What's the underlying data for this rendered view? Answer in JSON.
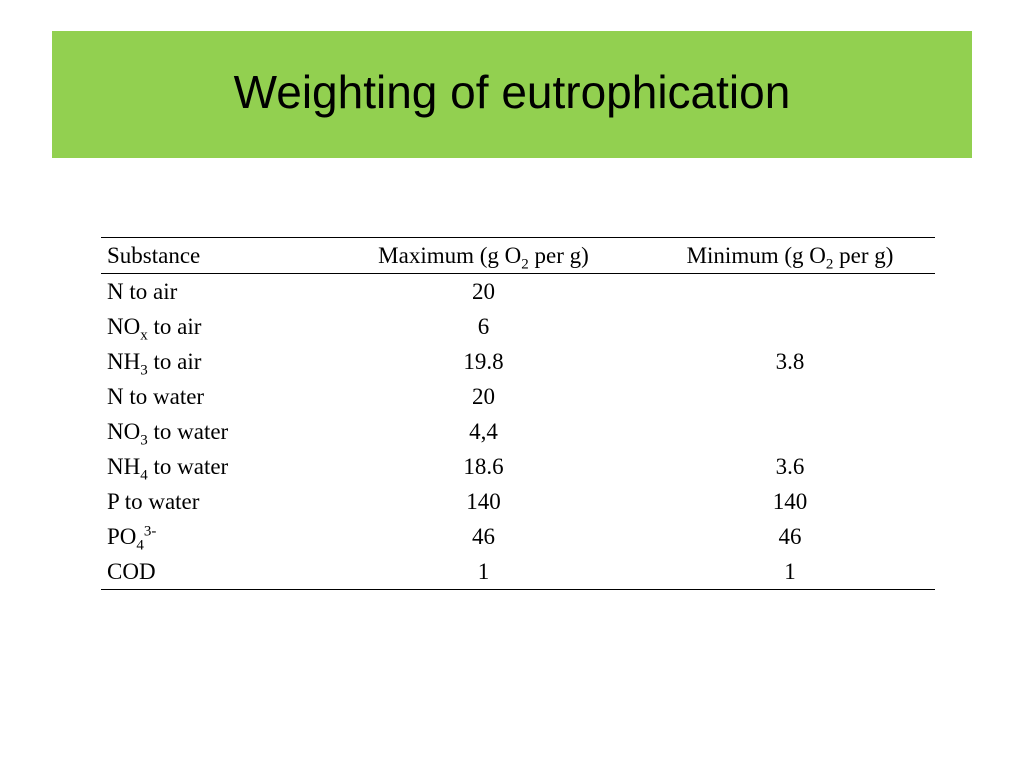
{
  "header": {
    "title": "Weighting of eutrophication"
  },
  "table": {
    "columns": [
      [
        {
          "t": "Substance"
        }
      ],
      [
        {
          "t": "Maximum (g O"
        },
        {
          "sub": "2"
        },
        {
          "t": " per g)"
        }
      ],
      [
        {
          "t": "Minimum (g O"
        },
        {
          "sub": "2"
        },
        {
          "t": " per g)"
        }
      ]
    ],
    "rows": [
      [
        [
          {
            "t": "N to air"
          }
        ],
        20,
        null
      ],
      [
        [
          {
            "t": "NO"
          },
          {
            "sub": "x"
          },
          {
            "t": " to air"
          }
        ],
        6,
        null
      ],
      [
        [
          {
            "t": "NH"
          },
          {
            "sub": "3"
          },
          {
            "t": " to air"
          }
        ],
        19.8,
        3.8
      ],
      [
        [
          {
            "t": "N to water"
          }
        ],
        20,
        null
      ],
      [
        [
          {
            "t": "NO"
          },
          {
            "sub": "3"
          },
          {
            "t": " to water"
          }
        ],
        "4,4",
        null
      ],
      [
        [
          {
            "t": "NH"
          },
          {
            "sub": "4"
          },
          {
            "t": " to water"
          }
        ],
        18.6,
        3.6
      ],
      [
        [
          {
            "t": "P to water"
          }
        ],
        140,
        140
      ],
      [
        [
          {
            "t": "PO"
          },
          {
            "sub": "4"
          },
          {
            "sup": "3-"
          }
        ],
        46,
        46
      ],
      [
        [
          {
            "t": "COD"
          }
        ],
        1,
        1
      ]
    ]
  }
}
